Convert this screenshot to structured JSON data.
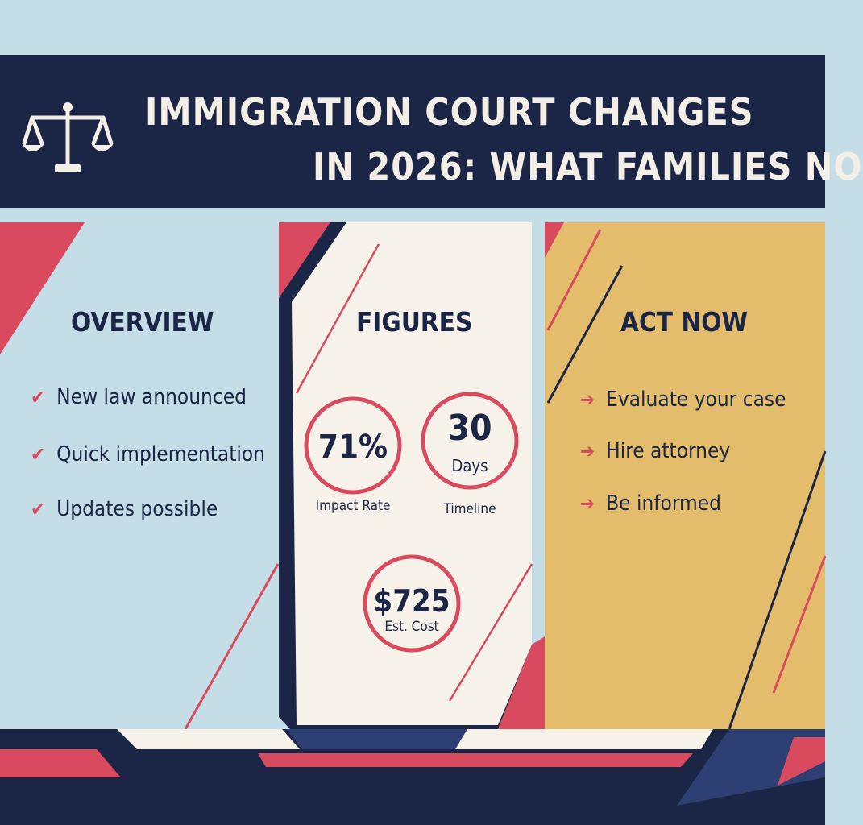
{
  "header": {
    "title_line1": "IMMIGRATION COURT CHANGES",
    "title_line2": "IN 2026: WHAT FAMILIES NO"
  },
  "overview": {
    "heading": "OVERVIEW",
    "items": [
      "New law announced",
      "Quick implementation",
      "Updates possible"
    ],
    "icon": "check-icon"
  },
  "figures": {
    "heading": "FIGURES",
    "stats": [
      {
        "value": "71%",
        "label": "Impact Rate"
      },
      {
        "value": "30",
        "unit": "Days",
        "label": "Timeline"
      },
      {
        "value": "$725",
        "label": "Est. Cost"
      }
    ]
  },
  "act_now": {
    "heading": "ACT NOW",
    "items": [
      "Evaluate your case",
      "Hire attorney",
      "Be informed"
    ],
    "icon": "arrow-right-icon"
  },
  "colors": {
    "navy": "#1b2545",
    "coral": "#d94a5f",
    "light_blue": "#c5dde6",
    "cream": "#f6f2ea",
    "mustard": "#e3bd6b"
  }
}
